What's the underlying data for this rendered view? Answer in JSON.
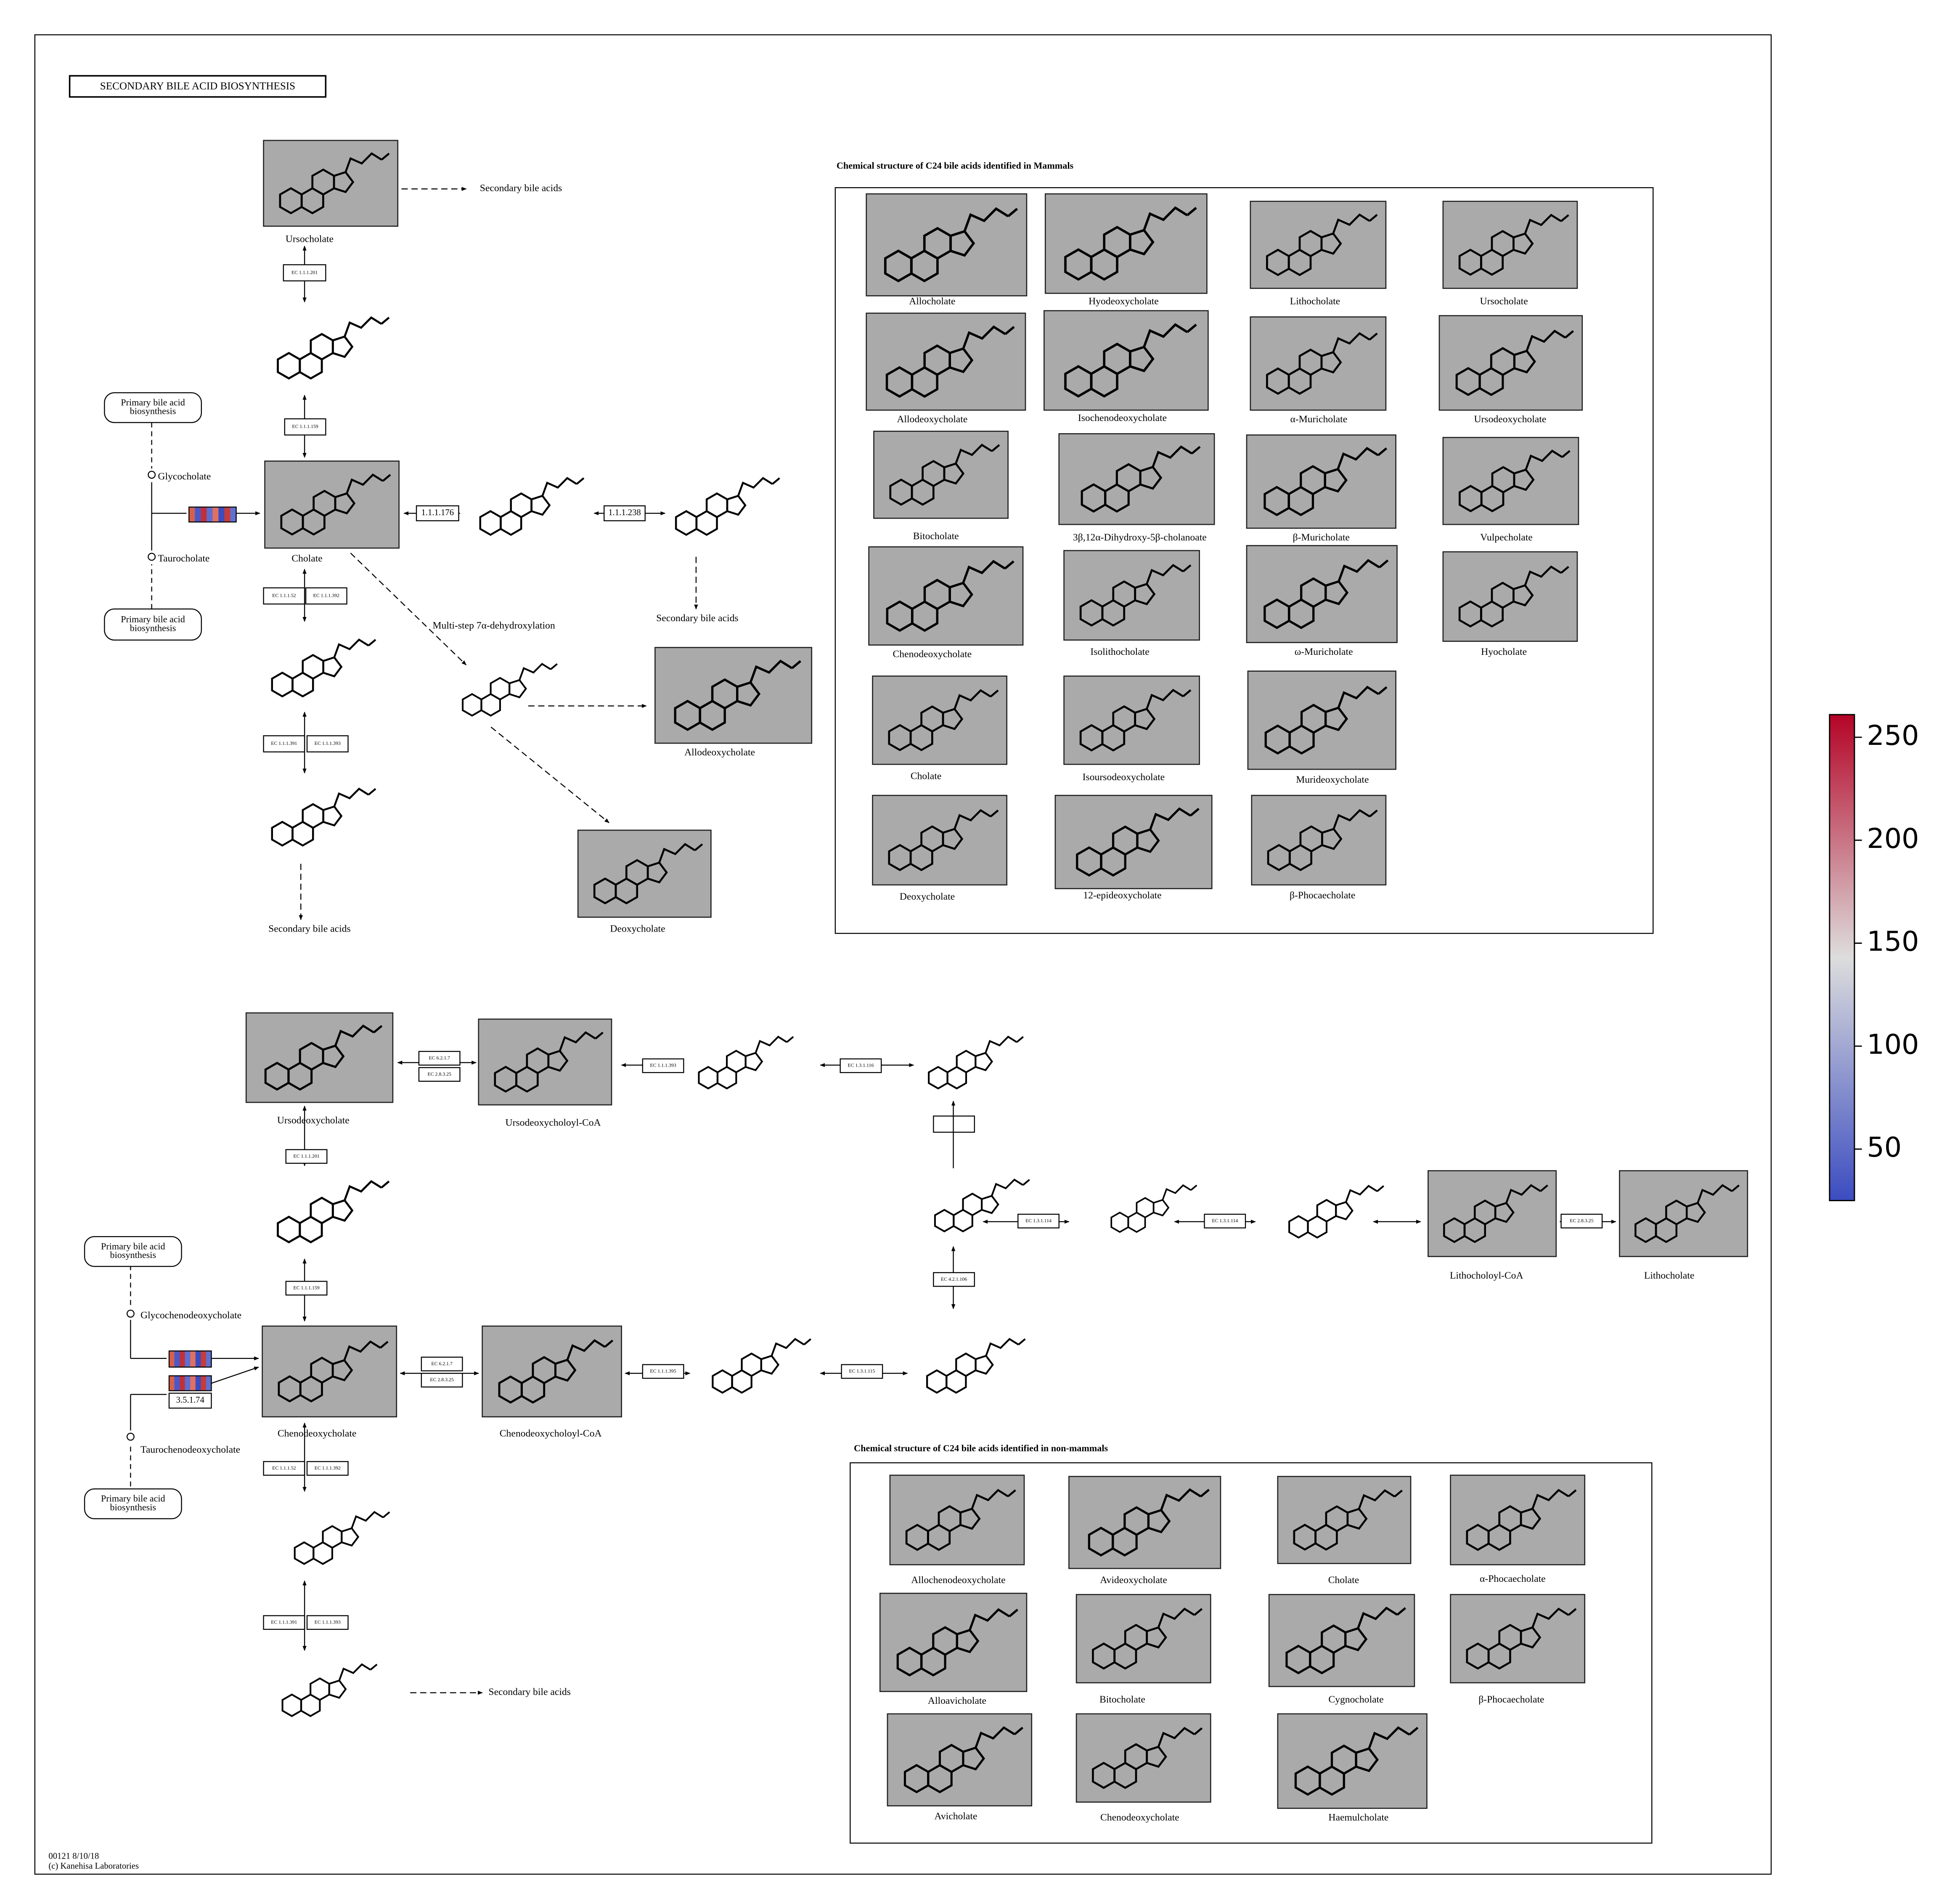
{
  "title": "SECONDARY BILE ACID BIOSYNTHESIS",
  "compounds": [
    "Ursocholate",
    "Cholate",
    "Allodeoxycholate",
    "Deoxycholate",
    "Ursodeoxycholate",
    "Ursodeoxycholoyl-CoA",
    "Chenodeoxycholate",
    "Chenodeoxycholoyl-CoA",
    "Lithocholoyl-CoA",
    "Lithocholate"
  ],
  "map_labels": [
    "Secondary bile acids",
    "Secondary bile acids",
    "Secondary bile acids",
    "Secondary bile acids",
    "Multi-step 7α-dehydroxylation",
    "Glycocholate",
    "Taurocholate",
    "Glycochenodeoxycholate",
    "Taurochenodeoxycholate"
  ],
  "links": [
    [
      "Primary bile acid",
      "biosynthesis"
    ],
    [
      "Primary bile acid",
      "biosynthesis"
    ],
    [
      "Primary bile acid",
      "biosynthesis"
    ],
    [
      "Primary bile acid",
      "biosynthesis"
    ]
  ],
  "enzymes": [
    "EC 1.1.1.201",
    "EC 1.1.1.159",
    "1.1.1.176",
    "1.1.1.238",
    "EC 1.1.1.52",
    "EC 1.1.1.392",
    "EC 1.1.1.391",
    "EC 1.1.1.393",
    "EC 6.2.1.7",
    "EC 2.8.3.25",
    "EC 1.1.1.393",
    "EC 1.3.1.116",
    "EC 1.3.1.114",
    "EC 1.3.1.114",
    "EC 2.8.3.25",
    "EC 4.2.1.106",
    "EC 1.1.1.201",
    "EC 1.1.1.159",
    "EC 6.2.1.7",
    "EC 2.8.3.25",
    "EC 1.1.1.395",
    "EC 1.3.1.115",
    "EC 1.1.1.52",
    "EC 1.1.1.392",
    "EC 1.1.1.391",
    "EC 1.1.1.393",
    "3.5.1.74"
  ],
  "mammals": {
    "title": "Chemical structure of C24 bile acids identified in Mammals",
    "compounds": [
      "Allocholate",
      "Hyodeoxycholate",
      "Lithocholate",
      "Ursocholate",
      "Allodeoxycholate",
      "Isochenodeoxycholate",
      "α-Muricholate",
      "Ursodeoxycholate",
      "Bitocholate",
      "3β,12α-Dihydroxy-5β-cholanoate",
      "β-Muricholate",
      "Vulpecholate",
      "Chenodeoxycholate",
      "Isolithocholate",
      "ω-Muricholate",
      "Hyocholate",
      "Cholate",
      "Isoursodeoxycholate",
      "Murideoxycholate",
      "Deoxycholate",
      "12-epideoxycholate",
      "β-Phocaecholate"
    ]
  },
  "non_mammals": {
    "title": "Chemical structure of C24 bile acids identified in non-mammals",
    "compounds": [
      "Allochenodeoxycholate",
      "Avideoxycholate",
      "Cholate",
      "α-Phocaecholate",
      "Alloavicholate",
      "Bitocholate",
      "Cygnocholate",
      "β-Phocaecholate",
      "Avicholate",
      "Chenodeoxycholate",
      "Haemulcholate"
    ]
  },
  "footer": [
    "00121 8/10/18",
    "(c) Kanehisa Laboratories"
  ],
  "colorbar": {
    "range": [
      25,
      261
    ],
    "ticks": [
      50,
      100,
      150,
      200,
      250
    ],
    "colors": [
      "#3b4cc0",
      "#dddddd",
      "#b40426"
    ]
  }
}
